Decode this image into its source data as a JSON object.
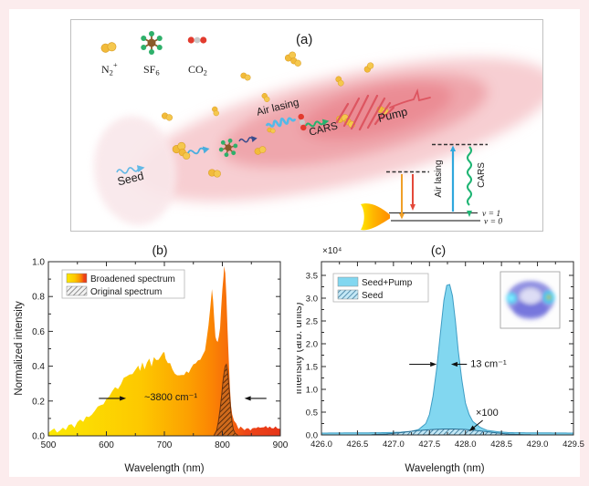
{
  "figure": {
    "frame_color": "#fceced",
    "panel_a_label": "(a)"
  },
  "panel_a": {
    "molecule_legend": [
      {
        "base": "N",
        "sub": "2",
        "sup": "+"
      },
      {
        "base": "SF",
        "sub": "6",
        "sup": ""
      },
      {
        "base": "CO",
        "sub": "2",
        "sup": ""
      }
    ],
    "labels": {
      "seed": "Seed",
      "air_lasing": "Air lasing",
      "cars": "CARS",
      "pump": "Pump"
    },
    "energy_diagram": {
      "air_lasing": "Air lasing",
      "cars": "CARS",
      "v1": "v = 1",
      "v0": "v = 0"
    },
    "colors": {
      "beam_outer": "#f6c6ca",
      "beam_mid": "#efa0a6",
      "beam_core": "#ea868e",
      "seed_spot": "#f9e7ea",
      "n2": "#f2bb3a",
      "sf6_center": "#8a5a2a",
      "sf6_outer": "#2eb06a",
      "co2_oxygen": "#e23b2e",
      "co2_carbon": "#c9c9c9",
      "seed_wave": "#63b9e6",
      "air_lasing_wave": "#54b9e8",
      "cars_wave": "#27b26d",
      "pump_wave": "#dd5560",
      "level_orange": "#f0a028",
      "level_red": "#e4493a",
      "level_blue": "#2fa8dd",
      "level_green": "#1fb574"
    }
  },
  "chart_data": [
    {
      "type": "area",
      "title": "(b)",
      "xlabel": "Wavelength (nm)",
      "ylabel": "Normalized intensity",
      "xlim": [
        500,
        900
      ],
      "ylim": [
        0,
        1.0
      ],
      "grid": false,
      "legend_position": "top-left",
      "xticks": [
        500,
        600,
        700,
        800,
        900
      ],
      "xtick_labels": [
        "500",
        "600",
        "700",
        "800",
        "900"
      ],
      "yticks": [
        0,
        0.2,
        0.4,
        0.6,
        0.8,
        1
      ],
      "ytick_labels": [
        "0.0",
        "0.2",
        "0.4",
        "0.6",
        "0.8",
        "1.0"
      ],
      "series": [
        {
          "name": "Broadened spectrum",
          "style": "gradient",
          "stroke": "none",
          "noise": 0.014,
          "gradient": [
            [
              "0%",
              "#fce903"
            ],
            [
              "40%",
              "#fdc800"
            ],
            [
              "60%",
              "#fca101"
            ],
            [
              "70%",
              "#fb8603"
            ],
            [
              "78%",
              "#f66b0b"
            ],
            [
              "85%",
              "#ee4718"
            ],
            [
              "100%",
              "#e63418"
            ]
          ],
          "points": [
            [
              500,
              0.02
            ],
            [
              505,
              0.025
            ],
            [
              510,
              0.03
            ],
            [
              515,
              0.03
            ],
            [
              520,
              0.035
            ],
            [
              525,
              0.04
            ],
            [
              530,
              0.045
            ],
            [
              535,
              0.05
            ],
            [
              540,
              0.055
            ],
            [
              545,
              0.06
            ],
            [
              550,
              0.07
            ],
            [
              555,
              0.08
            ],
            [
              560,
              0.09
            ],
            [
              565,
              0.1
            ],
            [
              570,
              0.11
            ],
            [
              575,
              0.13
            ],
            [
              580,
              0.14
            ],
            [
              585,
              0.16
            ],
            [
              590,
              0.18
            ],
            [
              595,
              0.19
            ],
            [
              600,
              0.21
            ],
            [
              605,
              0.23
            ],
            [
              610,
              0.25
            ],
            [
              615,
              0.27
            ],
            [
              620,
              0.28
            ],
            [
              625,
              0.3
            ],
            [
              630,
              0.32
            ],
            [
              635,
              0.33
            ],
            [
              640,
              0.35
            ],
            [
              645,
              0.36
            ],
            [
              650,
              0.38
            ],
            [
              655,
              0.4
            ],
            [
              658,
              0.37
            ],
            [
              662,
              0.41
            ],
            [
              666,
              0.39
            ],
            [
              670,
              0.42
            ],
            [
              674,
              0.43
            ],
            [
              678,
              0.41
            ],
            [
              682,
              0.44
            ],
            [
              686,
              0.43
            ],
            [
              690,
              0.45
            ],
            [
              694,
              0.46
            ],
            [
              698,
              0.48
            ],
            [
              700,
              0.47
            ],
            [
              702,
              0.44
            ],
            [
              706,
              0.42
            ],
            [
              710,
              0.41
            ],
            [
              714,
              0.39
            ],
            [
              718,
              0.37
            ],
            [
              722,
              0.36
            ],
            [
              726,
              0.35
            ],
            [
              730,
              0.34
            ],
            [
              734,
              0.35
            ],
            [
              738,
              0.36
            ],
            [
              742,
              0.37
            ],
            [
              746,
              0.39
            ],
            [
              750,
              0.41
            ],
            [
              754,
              0.42
            ],
            [
              758,
              0.44
            ],
            [
              762,
              0.45
            ],
            [
              766,
              0.47
            ],
            [
              770,
              0.5
            ],
            [
              773,
              0.55
            ],
            [
              776,
              0.63
            ],
            [
              779,
              0.74
            ],
            [
              782,
              0.84
            ],
            [
              784,
              0.78
            ],
            [
              786,
              0.66
            ],
            [
              788,
              0.58
            ],
            [
              790,
              0.55
            ],
            [
              792,
              0.54
            ],
            [
              794,
              0.57
            ],
            [
              796,
              0.63
            ],
            [
              798,
              0.72
            ],
            [
              800,
              0.84
            ],
            [
              802,
              0.93
            ],
            [
              803,
              0.97
            ],
            [
              805,
              0.92
            ],
            [
              807,
              0.8
            ],
            [
              809,
              0.62
            ],
            [
              811,
              0.44
            ],
            [
              813,
              0.28
            ],
            [
              815,
              0.18
            ],
            [
              817,
              0.12
            ],
            [
              820,
              0.08
            ],
            [
              824,
              0.06
            ],
            [
              828,
              0.05
            ],
            [
              835,
              0.05
            ],
            [
              845,
              0.04
            ],
            [
              855,
              0.05
            ],
            [
              865,
              0.04
            ],
            [
              875,
              0.05
            ],
            [
              885,
              0.04
            ],
            [
              895,
              0.045
            ],
            [
              900,
              0.04
            ]
          ]
        },
        {
          "name": "Original spectrum",
          "style": "hatch",
          "fill_bg": "#cf6a1c",
          "hatch_color": "#3f1d05",
          "stroke": "#6b3410",
          "legend_bg": "#f2f2f2",
          "legend_hatch": "#666666",
          "points": [
            [
              786,
              0.005
            ],
            [
              790,
              0.03
            ],
            [
              793,
              0.08
            ],
            [
              796,
              0.15
            ],
            [
              799,
              0.24
            ],
            [
              801,
              0.31
            ],
            [
              803,
              0.36
            ],
            [
              805,
              0.4
            ],
            [
              807,
              0.41
            ],
            [
              809,
              0.37
            ],
            [
              811,
              0.3
            ],
            [
              813,
              0.21
            ],
            [
              815,
              0.13
            ],
            [
              817,
              0.07
            ],
            [
              819,
              0.035
            ],
            [
              822,
              0.015
            ],
            [
              826,
              0.005
            ]
          ]
        }
      ],
      "annotations": [
        {
          "text": "~3800 cm⁻¹",
          "x": 711,
          "y": 0.205,
          "color": "#9b1c00",
          "size": 11
        }
      ],
      "arrows": [
        {
          "x1": 587,
          "y1": 0.215,
          "x2": 634,
          "y2": 0.215
        },
        {
          "x1": 876,
          "y1": 0.215,
          "x2": 838,
          "y2": 0.215
        }
      ]
    },
    {
      "type": "area",
      "title": "(c)",
      "xlabel": "Wavelength (nm)",
      "ylabel": "Intensity (arb. units)",
      "scale_label": "×10⁴",
      "xlim": [
        426.0,
        429.5
      ],
      "ylim": [
        0,
        3.8
      ],
      "grid": false,
      "legend_position": "top-left",
      "xticks": [
        426,
        426.5,
        427,
        427.5,
        428,
        428.5,
        429,
        429.5
      ],
      "xtick_labels": [
        "426.0",
        "426.5",
        "427.0",
        "427.5",
        "428.0",
        "428.5",
        "429.0",
        "429.5"
      ],
      "yticks": [
        0,
        0.5,
        1,
        1.5,
        2,
        2.5,
        3,
        3.5
      ],
      "ytick_labels": [
        "0.0",
        "0.5",
        "1.0",
        "1.5",
        "2.0",
        "2.5",
        "3.0",
        "3.5"
      ],
      "series": [
        {
          "name": "Seed+Pump",
          "style": "solid",
          "fill": "#82d7f0",
          "stroke": "#3e9dc4",
          "points": [
            [
              426.0,
              0.04
            ],
            [
              426.5,
              0.045
            ],
            [
              426.9,
              0.05
            ],
            [
              427.1,
              0.06
            ],
            [
              427.25,
              0.08
            ],
            [
              427.35,
              0.12
            ],
            [
              427.45,
              0.25
            ],
            [
              427.5,
              0.45
            ],
            [
              427.55,
              0.85
            ],
            [
              427.6,
              1.45
            ],
            [
              427.65,
              2.2
            ],
            [
              427.7,
              2.95
            ],
            [
              427.74,
              3.28
            ],
            [
              427.78,
              3.3
            ],
            [
              427.82,
              3.05
            ],
            [
              427.86,
              2.5
            ],
            [
              427.9,
              1.85
            ],
            [
              427.95,
              1.2
            ],
            [
              428.0,
              0.7
            ],
            [
              428.05,
              0.45
            ],
            [
              428.1,
              0.3
            ],
            [
              428.2,
              0.17
            ],
            [
              428.3,
              0.1
            ],
            [
              428.45,
              0.07
            ],
            [
              428.6,
              0.05
            ],
            [
              429.0,
              0.045
            ],
            [
              429.5,
              0.04
            ]
          ]
        },
        {
          "name": "Seed",
          "style": "hatch",
          "fill_bg": "#c3e7f5",
          "hatch_color": "#2a6e93",
          "stroke": "#2a6e93",
          "points": [
            [
              426.7,
              0.005
            ],
            [
              426.9,
              0.02
            ],
            [
              427.1,
              0.05
            ],
            [
              427.3,
              0.09
            ],
            [
              427.5,
              0.115
            ],
            [
              427.7,
              0.13
            ],
            [
              427.85,
              0.13
            ],
            [
              428.0,
              0.12
            ],
            [
              428.1,
              0.105
            ],
            [
              428.25,
              0.08
            ],
            [
              428.4,
              0.05
            ],
            [
              428.55,
              0.025
            ],
            [
              428.7,
              0.01
            ],
            [
              428.9,
              0.004
            ]
          ]
        }
      ],
      "annotations": [
        {
          "text": "13 cm⁻¹",
          "x": 428.32,
          "y": 1.49,
          "color": "#111111",
          "size": 11
        },
        {
          "text": "×100",
          "x": 428.3,
          "y": 0.42,
          "color": "#111111",
          "size": 11
        }
      ],
      "arrows": [
        {
          "x1": 427.22,
          "y1": 1.55,
          "x2": 427.6,
          "y2": 1.55
        },
        {
          "x1": 428.02,
          "y1": 1.55,
          "x2": 427.8,
          "y2": 1.55
        },
        {
          "x1": 428.24,
          "y1": 0.32,
          "x2": 428.05,
          "y2": 0.08
        }
      ]
    }
  ]
}
